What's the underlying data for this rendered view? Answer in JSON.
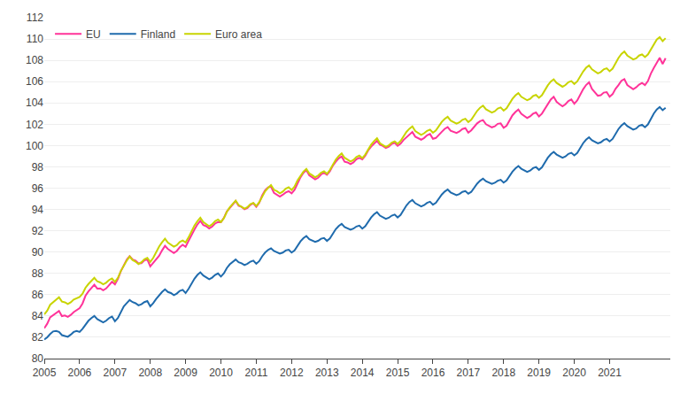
{
  "chart_data": {
    "type": "line",
    "x": [
      2005,
      2005.0833333333333,
      2005.1666666666667,
      2005.25,
      2005.3333333333333,
      2005.4166666666667,
      2005.5,
      2005.5833333333333,
      2005.6666666666667,
      2005.75,
      2005.8333333333333,
      2005.9166666666667,
      2006,
      2006.0833333333333,
      2006.1666666666667,
      2006.25,
      2006.3333333333333,
      2006.4166666666667,
      2006.5,
      2006.5833333333333,
      2006.6666666666667,
      2006.75,
      2006.8333333333333,
      2006.9166666666667,
      2007,
      2007.0833333333333,
      2007.1666666666667,
      2007.25,
      2007.3333333333333,
      2007.4166666666667,
      2007.5,
      2007.5833333333333,
      2007.6666666666667,
      2007.75,
      2007.8333333333333,
      2007.9166666666667,
      2008,
      2008.0833333333333,
      2008.1666666666667,
      2008.25,
      2008.3333333333333,
      2008.4166666666667,
      2008.5,
      2008.5833333333333,
      2008.6666666666667,
      2008.75,
      2008.8333333333333,
      2008.9166666666667,
      2009,
      2009.0833333333333,
      2009.1666666666667,
      2009.25,
      2009.3333333333333,
      2009.4166666666667,
      2009.5,
      2009.5833333333333,
      2009.6666666666667,
      2009.75,
      2009.8333333333333,
      2009.9166666666667,
      2010,
      2010.0833333333333,
      2010.1666666666667,
      2010.25,
      2010.3333333333333,
      2010.4166666666667,
      2010.5,
      2010.5833333333333,
      2010.6666666666667,
      2010.75,
      2010.8333333333333,
      2010.9166666666667,
      2011,
      2011.0833333333333,
      2011.1666666666667,
      2011.25,
      2011.3333333333333,
      2011.4166666666667,
      2011.5,
      2011.5833333333333,
      2011.6666666666667,
      2011.75,
      2011.8333333333333,
      2011.9166666666667,
      2012,
      2012.0833333333333,
      2012.1666666666667,
      2012.25,
      2012.3333333333333,
      2012.4166666666667,
      2012.5,
      2012.5833333333333,
      2012.6666666666667,
      2012.75,
      2012.8333333333333,
      2012.9166666666667,
      2013,
      2013.0833333333333,
      2013.1666666666667,
      2013.25,
      2013.3333333333333,
      2013.4166666666667,
      2013.5,
      2013.5833333333333,
      2013.6666666666667,
      2013.75,
      2013.8333333333333,
      2013.9166666666667,
      2014,
      2014.0833333333333,
      2014.1666666666667,
      2014.25,
      2014.3333333333333,
      2014.4166666666667,
      2014.5,
      2014.5833333333333,
      2014.6666666666667,
      2014.75,
      2014.8333333333333,
      2014.9166666666667,
      2015,
      2015.0833333333333,
      2015.1666666666667,
      2015.25,
      2015.3333333333333,
      2015.4166666666667,
      2015.5,
      2015.5833333333333,
      2015.6666666666667,
      2015.75,
      2015.8333333333333,
      2015.9166666666667,
      2016,
      2016.0833333333333,
      2016.1666666666667,
      2016.25,
      2016.3333333333333,
      2016.4166666666667,
      2016.5,
      2016.5833333333333,
      2016.6666666666667,
      2016.75,
      2016.8333333333333,
      2016.9166666666667,
      2017,
      2017.0833333333333,
      2017.1666666666667,
      2017.25,
      2017.3333333333333,
      2017.4166666666667,
      2017.5,
      2017.5833333333333,
      2017.6666666666667,
      2017.75,
      2017.8333333333333,
      2017.9166666666667,
      2018,
      2018.0833333333333,
      2018.1666666666667,
      2018.25,
      2018.3333333333333,
      2018.4166666666667,
      2018.5,
      2018.5833333333333,
      2018.6666666666667,
      2018.75,
      2018.8333333333333,
      2018.9166666666667,
      2019,
      2019.0833333333333,
      2019.1666666666667,
      2019.25,
      2019.3333333333333,
      2019.4166666666667,
      2019.5,
      2019.5833333333333,
      2019.6666666666667,
      2019.75,
      2019.8333333333333,
      2019.9166666666667,
      2020,
      2020.0833333333333,
      2020.1666666666667,
      2020.25,
      2020.3333333333333,
      2020.4166666666667,
      2020.5,
      2020.5833333333333,
      2020.6666666666667,
      2020.75,
      2020.8333333333333,
      2020.9166666666667,
      2021,
      2021.0833333333333,
      2021.1666666666667,
      2021.25,
      2021.3333333333333,
      2021.4166666666667,
      2021.5,
      2021.5833333333333,
      2021.6666666666667,
      2021.75,
      2021.8333333333333,
      2021.9166666666667,
      2022,
      2022.0833333333333,
      2022.1666666666667,
      2022.25,
      2022.3333333333333,
      2022.4166666666667,
      2022.5,
      2022.5833333333333
    ],
    "series": [
      {
        "name": "EU",
        "color": "#FF3399",
        "values": [
          82.84,
          83.27,
          83.88,
          84.09,
          84.28,
          84.47,
          83.99,
          84.05,
          83.92,
          84.1,
          84.37,
          84.57,
          84.74,
          85.18,
          85.9,
          86.3,
          86.62,
          86.93,
          86.57,
          86.59,
          86.42,
          86.58,
          86.89,
          87.21,
          86.96,
          87.48,
          88.2,
          88.8,
          89.28,
          89.62,
          89.3,
          89.19,
          88.93,
          88.95,
          89.23,
          89.3,
          88.65,
          88.99,
          89.34,
          89.65,
          90.15,
          90.58,
          90.29,
          90.1,
          89.9,
          90.1,
          90.45,
          90.68,
          90.49,
          91.05,
          91.61,
          92.12,
          92.59,
          92.93,
          92.54,
          92.43,
          92.22,
          92.39,
          92.68,
          92.82,
          92.81,
          93.21,
          93.82,
          94.17,
          94.46,
          94.79,
          94.34,
          94.24,
          94.01,
          94.13,
          94.43,
          94.58,
          94.24,
          94.62,
          95.31,
          95.8,
          96.08,
          96.14,
          95.56,
          95.39,
          95.2,
          95.38,
          95.59,
          95.71,
          95.51,
          95.84,
          96.5,
          97.01,
          97.44,
          97.68,
          97.2,
          97.03,
          96.82,
          96.97,
          97.29,
          97.44,
          97.25,
          97.58,
          98.11,
          98.49,
          98.8,
          98.98,
          98.48,
          98.41,
          98.25,
          98.42,
          98.71,
          98.83,
          98.7,
          99.03,
          99.54,
          99.9,
          100.19,
          100.44,
          100.07,
          99.96,
          99.78,
          99.9,
          100.16,
          100.25,
          99.97,
          100.17,
          100.52,
          100.76,
          101.01,
          101.27,
          100.83,
          100.68,
          100.55,
          100.71,
          100.96,
          101.08,
          100.63,
          100.71,
          101.03,
          101.29,
          101.57,
          101.73,
          101.39,
          101.31,
          101.18,
          101.32,
          101.55,
          101.63,
          101.21,
          101.43,
          101.8,
          102.08,
          102.28,
          102.39,
          102.0,
          101.87,
          101.71,
          101.8,
          102.04,
          102.08,
          101.66,
          101.86,
          102.42,
          102.84,
          103.15,
          103.38,
          102.98,
          102.81,
          102.59,
          102.74,
          102.99,
          103.1,
          102.73,
          102.99,
          103.47,
          103.91,
          104.32,
          104.58,
          104.1,
          103.88,
          103.68,
          103.88,
          104.18,
          104.32,
          103.93,
          104.24,
          104.81,
          105.28,
          105.68,
          105.94,
          105.31,
          105.0,
          104.68,
          104.73,
          104.97,
          105.02,
          104.58,
          104.82,
          105.32,
          105.67,
          106.08,
          106.23,
          105.68,
          105.48,
          105.29,
          105.46,
          105.72,
          105.88,
          105.68,
          106.05,
          106.76,
          107.29,
          107.82,
          108.24,
          107.66,
          108.2
        ]
      },
      {
        "name": "Finland",
        "color": "#1F6BAD",
        "values": [
          81.78,
          82.0,
          82.3,
          82.55,
          82.6,
          82.5,
          82.2,
          82.1,
          82.05,
          82.25,
          82.5,
          82.6,
          82.5,
          82.8,
          83.2,
          83.55,
          83.8,
          84.0,
          83.7,
          83.55,
          83.4,
          83.55,
          83.8,
          83.95,
          83.5,
          83.8,
          84.35,
          84.9,
          85.2,
          85.5,
          85.3,
          85.2,
          85.0,
          85.1,
          85.3,
          85.4,
          84.9,
          85.2,
          85.6,
          85.95,
          86.25,
          86.5,
          86.25,
          86.15,
          85.95,
          86.1,
          86.35,
          86.45,
          86.15,
          86.55,
          87.05,
          87.5,
          87.85,
          88.1,
          87.8,
          87.65,
          87.45,
          87.6,
          87.85,
          88.0,
          87.7,
          88.0,
          88.5,
          88.85,
          89.1,
          89.3,
          89.05,
          88.95,
          88.78,
          88.9,
          89.1,
          89.2,
          88.9,
          89.15,
          89.6,
          89.95,
          90.2,
          90.35,
          90.1,
          90.0,
          89.85,
          89.95,
          90.15,
          90.22,
          89.95,
          90.15,
          90.6,
          91.0,
          91.3,
          91.5,
          91.2,
          91.1,
          90.95,
          91.05,
          91.25,
          91.32,
          91.05,
          91.28,
          91.75,
          92.15,
          92.45,
          92.65,
          92.35,
          92.25,
          92.1,
          92.2,
          92.4,
          92.48,
          92.2,
          92.42,
          92.88,
          93.25,
          93.55,
          93.75,
          93.42,
          93.3,
          93.12,
          93.22,
          93.42,
          93.52,
          93.25,
          93.48,
          93.95,
          94.38,
          94.7,
          94.9,
          94.58,
          94.45,
          94.28,
          94.4,
          94.62,
          94.72,
          94.45,
          94.62,
          95.05,
          95.4,
          95.68,
          95.88,
          95.6,
          95.5,
          95.35,
          95.45,
          95.65,
          95.72,
          95.48,
          95.65,
          96.05,
          96.42,
          96.7,
          96.9,
          96.65,
          96.55,
          96.4,
          96.5,
          96.7,
          96.78,
          96.52,
          96.72,
          97.15,
          97.55,
          97.85,
          98.08,
          97.82,
          97.7,
          97.52,
          97.65,
          97.88,
          97.98,
          97.72,
          97.95,
          98.42,
          98.85,
          99.18,
          99.4,
          99.15,
          99.02,
          98.85,
          98.98,
          99.22,
          99.32,
          99.08,
          99.3,
          99.78,
          100.22,
          100.55,
          100.78,
          100.5,
          100.38,
          100.2,
          100.3,
          100.52,
          100.62,
          100.38,
          100.62,
          101.1,
          101.55,
          101.88,
          102.1,
          101.82,
          101.68,
          101.5,
          101.6,
          101.85,
          101.95,
          101.72,
          101.98,
          102.5,
          103.0,
          103.38,
          103.62,
          103.32,
          103.55
        ]
      },
      {
        "name": "Euro area",
        "color": "#C8D400",
        "values": [
          84.15,
          84.5,
          85.05,
          85.3,
          85.52,
          85.75,
          85.35,
          85.28,
          85.12,
          85.28,
          85.55,
          85.68,
          85.78,
          86.1,
          86.65,
          87.0,
          87.3,
          87.58,
          87.25,
          87.15,
          86.98,
          87.12,
          87.38,
          87.52,
          87.2,
          87.58,
          88.22,
          88.75,
          89.2,
          89.58,
          89.25,
          89.1,
          88.88,
          89.05,
          89.32,
          89.45,
          89.08,
          89.45,
          90.05,
          90.52,
          90.92,
          91.25,
          90.88,
          90.72,
          90.5,
          90.65,
          90.95,
          91.08,
          90.9,
          91.38,
          92.0,
          92.48,
          92.9,
          93.22,
          92.82,
          92.65,
          92.42,
          92.6,
          92.9,
          93.05,
          92.82,
          93.18,
          93.78,
          94.2,
          94.52,
          94.82,
          94.42,
          94.28,
          94.08,
          94.22,
          94.5,
          94.62,
          94.32,
          94.68,
          95.25,
          95.7,
          96.02,
          96.28,
          95.85,
          95.72,
          95.52,
          95.68,
          95.95,
          96.08,
          95.82,
          96.15,
          96.72,
          97.18,
          97.55,
          97.8,
          97.38,
          97.22,
          97.02,
          97.18,
          97.45,
          97.58,
          97.35,
          97.7,
          98.25,
          98.68,
          99.02,
          99.26,
          98.85,
          98.7,
          98.5,
          98.65,
          98.92,
          99.05,
          98.82,
          99.15,
          99.68,
          100.08,
          100.42,
          100.68,
          100.22,
          100.08,
          99.88,
          100.02,
          100.28,
          100.4,
          100.15,
          100.42,
          100.9,
          101.28,
          101.58,
          101.8,
          101.35,
          101.2,
          101.0,
          101.15,
          101.38,
          101.5,
          101.2,
          101.42,
          101.85,
          102.22,
          102.5,
          102.7,
          102.35,
          102.22,
          102.05,
          102.18,
          102.42,
          102.52,
          102.2,
          102.42,
          102.85,
          103.25,
          103.55,
          103.75,
          103.4,
          103.28,
          103.1,
          103.22,
          103.48,
          103.58,
          103.28,
          103.5,
          103.95,
          104.38,
          104.7,
          104.92,
          104.58,
          104.42,
          104.25,
          104.38,
          104.65,
          104.75,
          104.48,
          104.72,
          105.2,
          105.65,
          106.0,
          106.22,
          105.88,
          105.72,
          105.52,
          105.68,
          105.95,
          106.05,
          105.78,
          106.02,
          106.5,
          106.95,
          107.3,
          107.52,
          107.15,
          106.98,
          106.78,
          106.9,
          107.15,
          107.25,
          106.98,
          107.22,
          107.75,
          108.22,
          108.6,
          108.82,
          108.45,
          108.28,
          108.08,
          108.18,
          108.45,
          108.55,
          108.3,
          108.55,
          109.05,
          109.55,
          109.95,
          110.18,
          109.8,
          110.08
        ]
      }
    ],
    "xlim": [
      2005,
      2022.7166666666667
    ],
    "xticks": [
      2005,
      2006,
      2007,
      2008,
      2009,
      2010,
      2011,
      2012,
      2013,
      2014,
      2015,
      2016,
      2017,
      2018,
      2019,
      2020,
      2021
    ],
    "ylim": [
      80,
      112
    ],
    "yticks": [
      80,
      82,
      84,
      86,
      88,
      90,
      92,
      94,
      96,
      98,
      100,
      102,
      104,
      106,
      108,
      110,
      112
    ],
    "grid": "y",
    "legend": "upper left"
  }
}
